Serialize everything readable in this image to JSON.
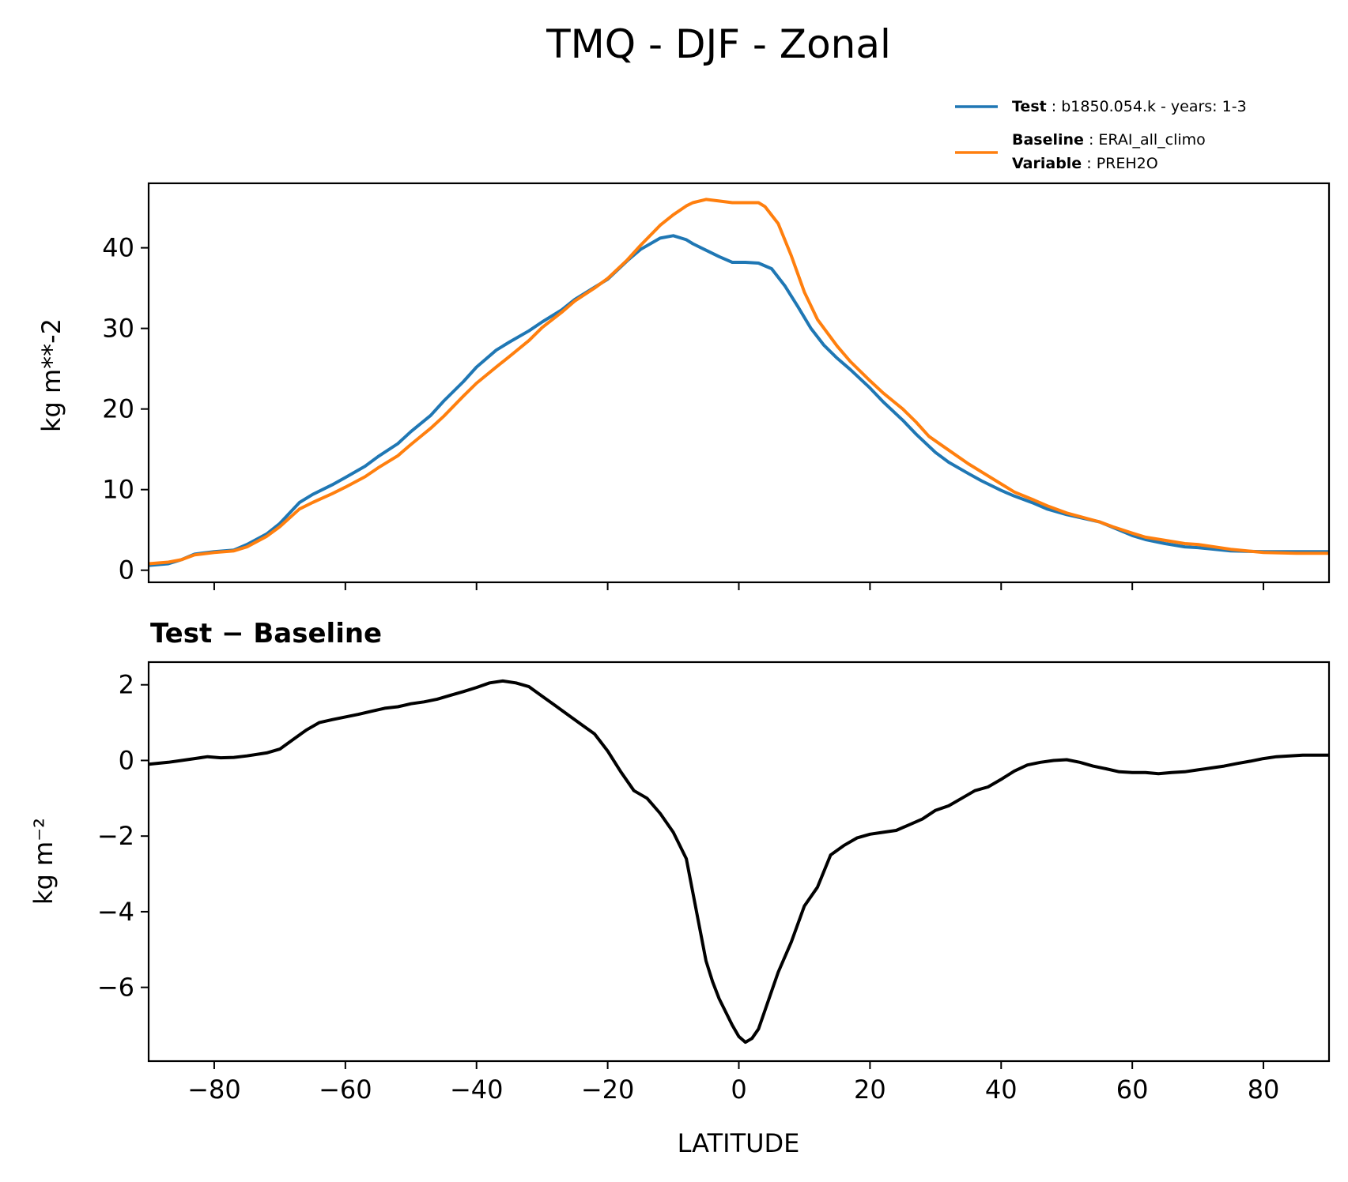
{
  "chart_data": [
    {
      "type": "line",
      "title": "TMQ - DJF - Zonal",
      "ylabel": "kg m**-2",
      "xlabel": "",
      "xlim": [
        -90,
        90
      ],
      "ylim": [
        -1.5,
        48
      ],
      "yticks": [
        0,
        10,
        20,
        30,
        40
      ],
      "ytick_labels": [
        "0",
        "10",
        "20",
        "30",
        "40"
      ],
      "xticks": [
        -80,
        -60,
        -40,
        -20,
        0,
        20,
        40,
        60,
        80
      ],
      "legend": {
        "placement": "above-right",
        "entries": [
          {
            "bold": "Test",
            "sep": " : ",
            "text": "b1850.054.k - years: 1-3",
            "color": "#1f77b4"
          },
          {
            "bold": "Baseline",
            "sep": " : ",
            "text": "ERAI_all_climo",
            "bold2": "Variable",
            "sep2": " : ",
            "text2": "PREH2O",
            "color": "#ff7f0e"
          }
        ]
      },
      "series": [
        {
          "name": "Test",
          "color": "#1f77b4",
          "x": [
            -90,
            -87,
            -85,
            -83,
            -80,
            -77,
            -75,
            -72,
            -70,
            -67,
            -65,
            -62,
            -60,
            -57,
            -55,
            -52,
            -50,
            -47,
            -45,
            -42,
            -40,
            -37,
            -35,
            -32,
            -30,
            -27,
            -25,
            -22,
            -20,
            -17,
            -15,
            -12,
            -10,
            -8,
            -7,
            -5,
            -3,
            -1,
            1,
            3,
            5,
            7,
            9,
            11,
            13,
            15,
            17,
            20,
            22,
            25,
            27,
            30,
            32,
            35,
            37,
            40,
            42,
            45,
            47,
            50,
            55,
            60,
            62,
            65,
            68,
            70,
            75,
            80,
            85,
            90
          ],
          "y": [
            0.6,
            0.8,
            1.3,
            2.0,
            2.3,
            2.5,
            3.2,
            4.5,
            5.8,
            8.4,
            9.4,
            10.6,
            11.5,
            12.9,
            14.1,
            15.7,
            17.2,
            19.2,
            21.0,
            23.4,
            25.2,
            27.3,
            28.3,
            29.7,
            30.8,
            32.3,
            33.6,
            35.1,
            36.1,
            38.4,
            39.8,
            41.2,
            41.5,
            41.0,
            40.5,
            39.7,
            38.9,
            38.2,
            38.2,
            38.1,
            37.4,
            35.3,
            32.7,
            30.0,
            27.9,
            26.3,
            24.9,
            22.6,
            20.9,
            18.6,
            16.9,
            14.6,
            13.4,
            12.0,
            11.1,
            9.9,
            9.2,
            8.3,
            7.6,
            6.9,
            6.0,
            4.3,
            3.8,
            3.3,
            2.9,
            2.8,
            2.4,
            2.3,
            2.3,
            2.3
          ]
        },
        {
          "name": "Baseline",
          "color": "#ff7f0e",
          "x": [
            -90,
            -87,
            -85,
            -83,
            -80,
            -77,
            -75,
            -72,
            -70,
            -67,
            -65,
            -62,
            -60,
            -57,
            -55,
            -52,
            -50,
            -47,
            -45,
            -42,
            -40,
            -37,
            -35,
            -32,
            -30,
            -27,
            -25,
            -22,
            -20,
            -17,
            -15,
            -12,
            -10,
            -8,
            -7,
            -5,
            -3,
            -1,
            1,
            3,
            4,
            6,
            8,
            10,
            12,
            15,
            17,
            20,
            22,
            25,
            27,
            29,
            32,
            35,
            37,
            40,
            42,
            45,
            47,
            50,
            55,
            57,
            60,
            62,
            65,
            68,
            70,
            75,
            80,
            85,
            90
          ],
          "y": [
            0.8,
            1.0,
            1.3,
            1.9,
            2.2,
            2.4,
            2.9,
            4.2,
            5.4,
            7.6,
            8.4,
            9.5,
            10.3,
            11.6,
            12.7,
            14.2,
            15.6,
            17.6,
            19.1,
            21.6,
            23.2,
            25.2,
            26.5,
            28.5,
            30.1,
            32.0,
            33.4,
            35.0,
            36.2,
            38.5,
            40.3,
            42.8,
            44.1,
            45.2,
            45.6,
            46.0,
            45.8,
            45.6,
            45.6,
            45.6,
            45.1,
            43.0,
            39.0,
            34.5,
            31.1,
            27.8,
            25.9,
            23.5,
            22.0,
            20.0,
            18.4,
            16.6,
            14.9,
            13.2,
            12.2,
            10.7,
            9.7,
            8.7,
            8.0,
            7.1,
            6.0,
            5.4,
            4.6,
            4.1,
            3.7,
            3.3,
            3.2,
            2.6,
            2.2,
            2.1,
            2.1
          ]
        }
      ]
    },
    {
      "type": "line",
      "title": "Test − Baseline",
      "ylabel": "kg m⁻²",
      "xlabel": "LATITUDE",
      "xlim": [
        -90,
        90
      ],
      "ylim": [
        -7.95,
        2.6
      ],
      "yticks": [
        2,
        0,
        -2,
        -4,
        -6
      ],
      "ytick_labels": [
        "2",
        "0",
        "−2",
        "−4",
        "−6"
      ],
      "xticks": [
        -80,
        -60,
        -40,
        -20,
        0,
        20,
        40,
        60,
        80
      ],
      "xtick_labels": [
        "−80",
        "−60",
        "−40",
        "−20",
        "0",
        "20",
        "40",
        "60",
        "80"
      ],
      "series": [
        {
          "name": "Test − Baseline",
          "color": "#000000",
          "x": [
            -90,
            -87,
            -85,
            -83,
            -81,
            -79,
            -77,
            -75,
            -72,
            -70,
            -68,
            -66,
            -64,
            -62,
            -60,
            -58,
            -56,
            -54,
            -52,
            -50,
            -48,
            -46,
            -44,
            -42,
            -40,
            -38,
            -36,
            -34,
            -32,
            -30,
            -28,
            -26,
            -24,
            -22,
            -20,
            -18,
            -16,
            -14,
            -12,
            -10,
            -8,
            -7,
            -6,
            -5,
            -4,
            -3,
            -2,
            -1,
            0,
            1,
            2,
            3,
            4,
            5,
            6,
            8,
            10,
            12,
            14,
            16,
            18,
            20,
            22,
            24,
            26,
            28,
            30,
            32,
            34,
            36,
            38,
            40,
            42,
            44,
            46,
            48,
            50,
            52,
            54,
            56,
            58,
            60,
            62,
            64,
            66,
            68,
            70,
            72,
            74,
            76,
            78,
            80,
            82,
            84,
            86,
            88,
            90
          ],
          "y": [
            -0.1,
            -0.05,
            0.0,
            0.05,
            0.1,
            0.07,
            0.08,
            0.12,
            0.2,
            0.3,
            0.55,
            0.8,
            1.0,
            1.08,
            1.15,
            1.22,
            1.3,
            1.38,
            1.42,
            1.5,
            1.55,
            1.62,
            1.72,
            1.82,
            1.93,
            2.05,
            2.1,
            2.05,
            1.95,
            1.7,
            1.45,
            1.2,
            0.95,
            0.7,
            0.25,
            -0.3,
            -0.8,
            -1.0,
            -1.4,
            -1.9,
            -2.6,
            -3.5,
            -4.4,
            -5.3,
            -5.85,
            -6.3,
            -6.65,
            -7.0,
            -7.3,
            -7.45,
            -7.35,
            -7.1,
            -6.6,
            -6.1,
            -5.6,
            -4.8,
            -3.85,
            -3.35,
            -2.5,
            -2.25,
            -2.05,
            -1.95,
            -1.9,
            -1.85,
            -1.7,
            -1.55,
            -1.32,
            -1.2,
            -1.0,
            -0.8,
            -0.7,
            -0.5,
            -0.28,
            -0.12,
            -0.05,
            0.0,
            0.02,
            -0.05,
            -0.15,
            -0.22,
            -0.3,
            -0.32,
            -0.32,
            -0.35,
            -0.32,
            -0.3,
            -0.25,
            -0.2,
            -0.15,
            -0.08,
            -0.02,
            0.05,
            0.1,
            0.12,
            0.14,
            0.14,
            0.14
          ]
        }
      ]
    }
  ]
}
